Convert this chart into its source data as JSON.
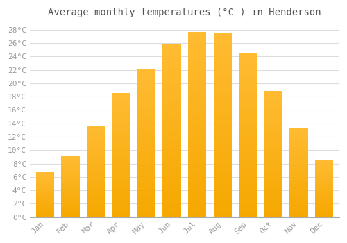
{
  "title": "Average monthly temperatures (°C ) in Henderson",
  "months": [
    "Jan",
    "Feb",
    "Mar",
    "Apr",
    "May",
    "Jun",
    "Jul",
    "Aug",
    "Sep",
    "Oct",
    "Nov",
    "Dec"
  ],
  "values": [
    6.7,
    9.1,
    13.7,
    18.5,
    22.1,
    25.8,
    27.7,
    27.6,
    24.5,
    18.8,
    13.4,
    8.6
  ],
  "bar_color_top": "#FFBB33",
  "bar_color_bottom": "#F5A800",
  "background_color": "#FFFFFF",
  "grid_color": "#DDDDDD",
  "text_color": "#999999",
  "ylim": [
    0,
    29
  ],
  "ytick_step": 2,
  "title_fontsize": 10,
  "tick_fontsize": 8,
  "font_family": "monospace"
}
